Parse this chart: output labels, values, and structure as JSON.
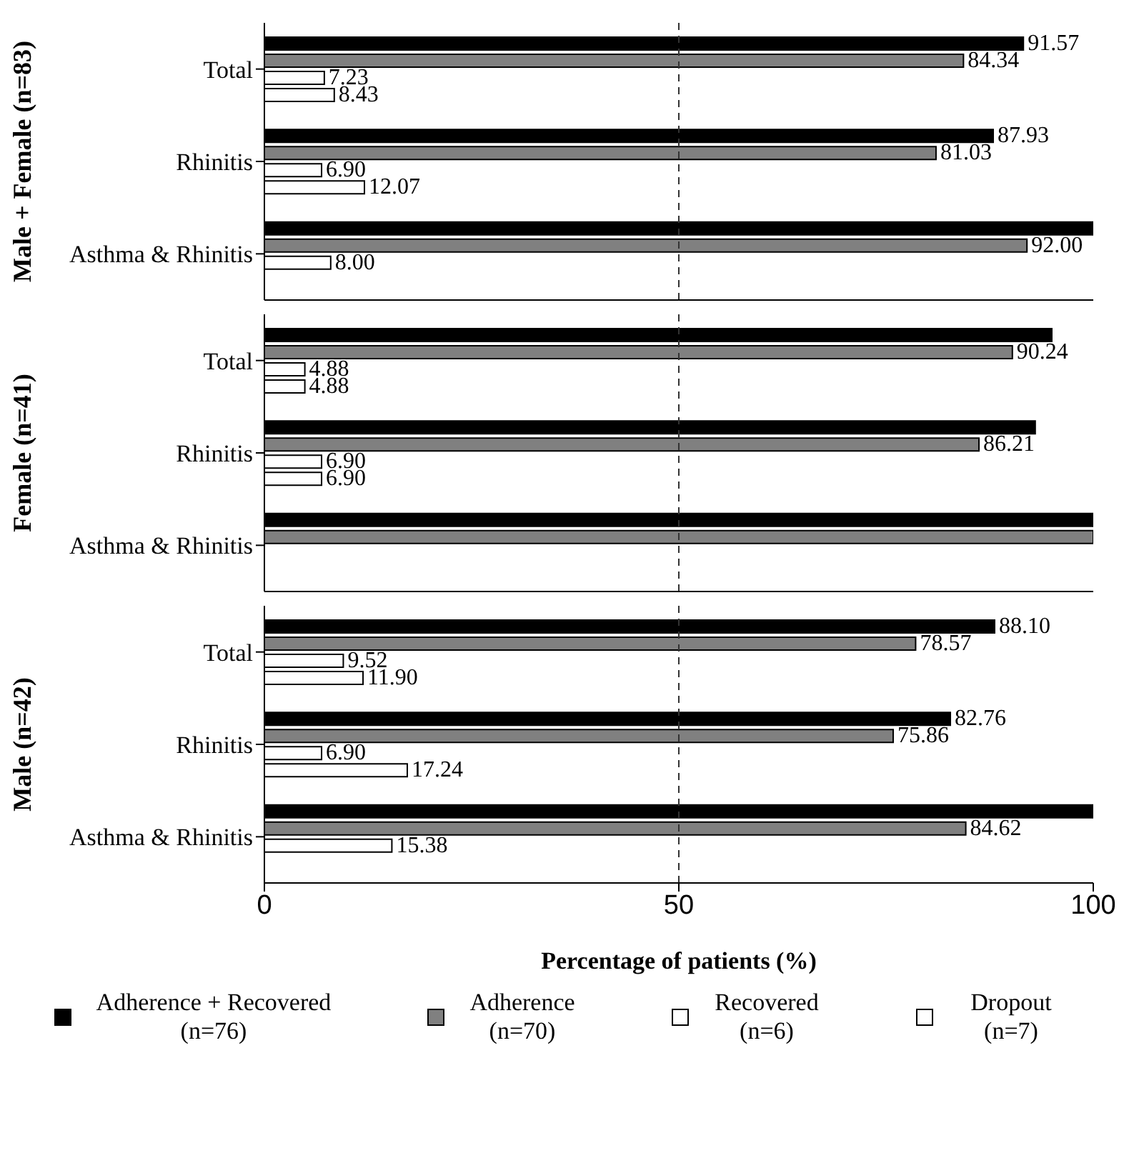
{
  "chart_data": [
    {
      "type": "bar",
      "orientation": "horizontal",
      "ylabel": "Male + Female (n=83)",
      "categories": [
        "Total",
        "Rhinitis",
        "Asthma & Rhinitis"
      ],
      "xlim": [
        0,
        100
      ],
      "xticks": [
        0,
        50,
        100
      ],
      "tick_labels": "y",
      "ref_lines": [
        {
          "axis": "x",
          "value": 50,
          "line_style": "dashed",
          "color": "#333333"
        }
      ],
      "series": [
        {
          "color": "#000000",
          "values": [
            91.57,
            87.93,
            100
          ],
          "value_labels": [
            "91.57",
            "87.93",
            null
          ]
        },
        {
          "color": "#808080",
          "values": [
            84.34,
            81.03,
            92.0
          ],
          "value_labels": [
            "84.34",
            "81.03",
            "92.00"
          ]
        },
        {
          "color": "#ffffff",
          "values": [
            7.23,
            6.9,
            8.0
          ],
          "value_labels": [
            "7.23",
            "6.90",
            "8.00"
          ]
        },
        {
          "color": "#ffffff",
          "values": [
            8.43,
            12.07,
            null
          ],
          "value_labels": [
            "8.43",
            "12.07",
            null
          ]
        }
      ]
    },
    {
      "type": "bar",
      "orientation": "horizontal",
      "ylabel": "Female (n=41)",
      "categories": [
        "Total",
        "Rhinitis",
        "Asthma & Rhinitis"
      ],
      "xlim": [
        0,
        100
      ],
      "xticks": [
        0,
        50,
        100
      ],
      "tick_labels": "y",
      "ref_lines": [
        {
          "axis": "x",
          "value": 50,
          "line_style": "dashed",
          "color": "#333333"
        }
      ],
      "series": [
        {
          "color": "#000000",
          "values": [
            95,
            93,
            100
          ],
          "value_labels": [
            null,
            null,
            null
          ]
        },
        {
          "color": "#808080",
          "values": [
            90.24,
            86.21,
            100
          ],
          "value_labels": [
            "90.24",
            "86.21",
            null
          ]
        },
        {
          "color": "#ffffff",
          "values": [
            4.88,
            6.9,
            null
          ],
          "value_labels": [
            "4.88",
            "6.90",
            null
          ]
        },
        {
          "color": "#ffffff",
          "values": [
            4.88,
            6.9,
            null
          ],
          "value_labels": [
            "4.88",
            "6.90",
            null
          ]
        }
      ]
    },
    {
      "type": "bar",
      "orientation": "horizontal",
      "ylabel": "Male (n=42)",
      "xlabel": "Percentage of patients (%)",
      "categories": [
        "Total",
        "Rhinitis",
        "Asthma & Rhinitis"
      ],
      "xlim": [
        0,
        100
      ],
      "xticks": [
        0,
        50,
        100
      ],
      "legend": "bottom",
      "ref_lines": [
        {
          "axis": "x",
          "value": 50,
          "line_style": "dashed",
          "color": "#333333"
        }
      ],
      "series": [
        {
          "name": "Adherence + Recovered (n=76)",
          "color": "#000000",
          "values": [
            88.1,
            82.76,
            100
          ],
          "value_labels": [
            "88.10",
            "82.76",
            null
          ]
        },
        {
          "name": "Adherence (n=70)",
          "color": "#808080",
          "values": [
            78.57,
            75.86,
            84.62
          ],
          "value_labels": [
            "78.57",
            "75.86",
            "84.62"
          ]
        },
        {
          "name": "Recovered (n=6)",
          "color": "#ffffff",
          "values": [
            9.52,
            6.9,
            15.38
          ],
          "value_labels": [
            "9.52",
            "6.90",
            "15.38"
          ]
        },
        {
          "name": "Dropout (n=7)",
          "color": "#ffffff",
          "values": [
            11.9,
            17.24,
            null
          ],
          "value_labels": [
            "11.90",
            "17.24",
            null
          ]
        }
      ]
    }
  ]
}
